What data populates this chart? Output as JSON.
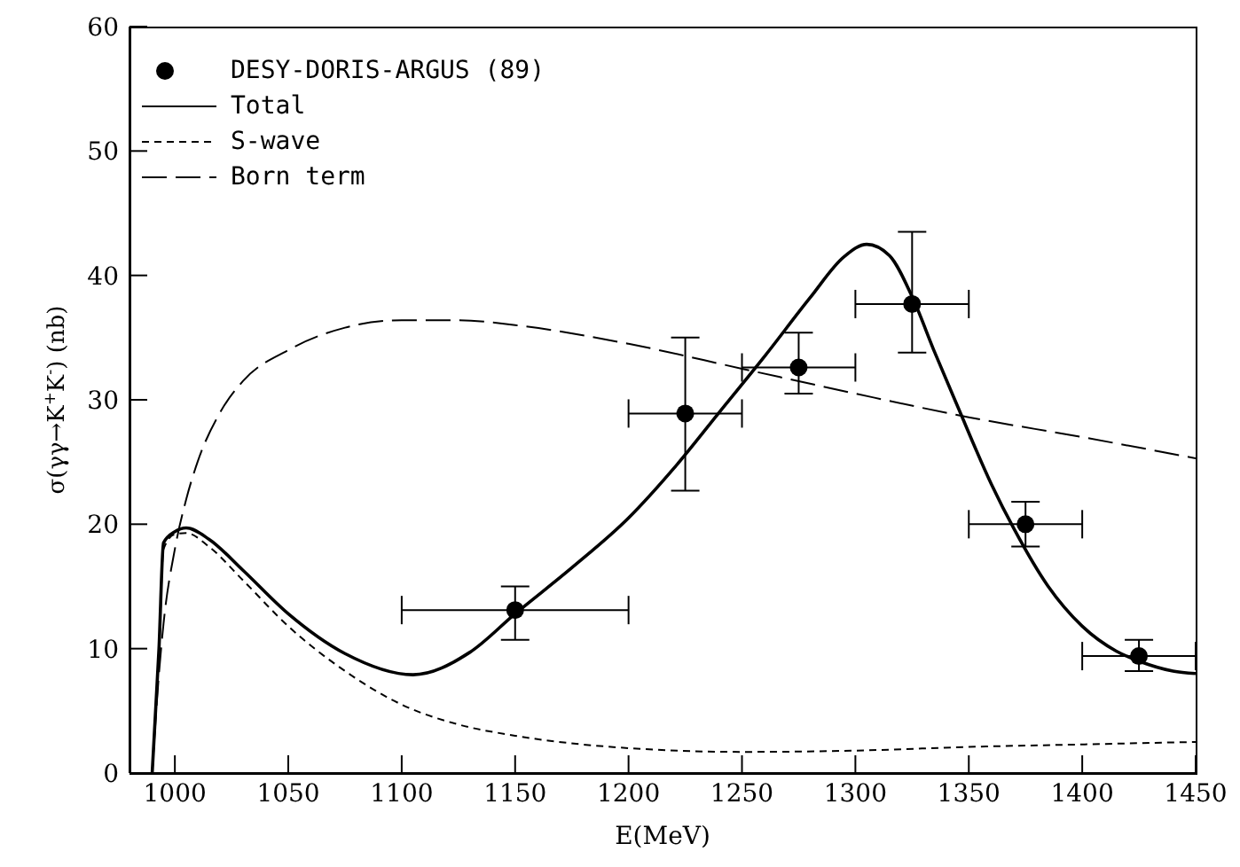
{
  "chart_data": {
    "type": "line",
    "xlabel": "E(MeV)",
    "ylabel": "σ(γγ→K$^{+}$K$^{-}$) (nb)",
    "xlim": [
      980,
      1450
    ],
    "xticks": [
      1000,
      1050,
      1100,
      1150,
      1200,
      1250,
      1300,
      1350,
      1400,
      1450
    ],
    "ylim": [
      0,
      60
    ],
    "yticks": [
      0,
      10,
      20,
      30,
      40,
      50,
      60
    ],
    "grid": false,
    "legend": "top left",
    "series": [
      {
        "name": "DESY-DORIS-ARGUS (89)",
        "type": "scatter",
        "marker": "circle",
        "color": "#000000",
        "x": [
          1150,
          1225,
          1275,
          1325,
          1375,
          1425
        ],
        "values": [
          13.1,
          28.9,
          32.6,
          37.7,
          20.0,
          9.4
        ],
        "errors": [
          [
            10.7,
            15.0
          ],
          [
            22.7,
            35.0
          ],
          [
            30.5,
            35.4
          ],
          [
            33.8,
            43.5
          ],
          [
            18.2,
            21.8
          ],
          [
            8.2,
            10.7
          ]
        ],
        "xerrors": [
          50,
          25,
          25,
          25,
          25,
          25
        ]
      },
      {
        "name": "Total",
        "type": "line",
        "line_style": "solid",
        "color": "#000000",
        "x": [
          990,
          993,
          995,
          1000,
          1005,
          1015,
          1030,
          1050,
          1075,
          1105,
          1130,
          1150,
          1175,
          1200,
          1220,
          1240,
          1260,
          1280,
          1295,
          1305,
          1315,
          1325,
          1335,
          1345,
          1360,
          1370,
          1385,
          1400,
          1415,
          1425,
          1440,
          1450
        ],
        "values": [
          0,
          10,
          18.5,
          19.4,
          19.7,
          18.8,
          16.3,
          12.8,
          9.6,
          7.9,
          9.7,
          12.8,
          16.5,
          20.5,
          24.5,
          29,
          33.5,
          38.2,
          41.5,
          42.5,
          41.6,
          38.3,
          33.8,
          29.5,
          23.2,
          19.6,
          15,
          11.8,
          9.8,
          9,
          8.2,
          8
        ]
      },
      {
        "name": "S-wave",
        "type": "line",
        "line_style": "dashed",
        "color": "#000000",
        "x": [
          990,
          993,
          995,
          1000,
          1005,
          1015,
          1030,
          1050,
          1075,
          1100,
          1125,
          1150,
          1200,
          1250,
          1300,
          1350,
          1400,
          1450
        ],
        "values": [
          0,
          10,
          18,
          19.2,
          19.3,
          18.2,
          15.5,
          11.8,
          8.2,
          5.5,
          3.9,
          3,
          2,
          1.7,
          1.8,
          2.1,
          2.3,
          2.5
        ]
      },
      {
        "name": "Born term",
        "type": "line",
        "line_style": "longdash",
        "color": "#000000",
        "x": [
          990,
          993,
          995,
          1000,
          1005,
          1010,
          1020,
          1030,
          1050,
          1075,
          1100,
          1125,
          1150,
          1200,
          1250,
          1300,
          1350,
          1400,
          1450
        ],
        "values": [
          0,
          8,
          12,
          18,
          22,
          25,
          29,
          31.5,
          34,
          35.8,
          36.4,
          36.4,
          36,
          34.5,
          32.5,
          30.5,
          28.6,
          27,
          25.3
        ]
      }
    ]
  }
}
